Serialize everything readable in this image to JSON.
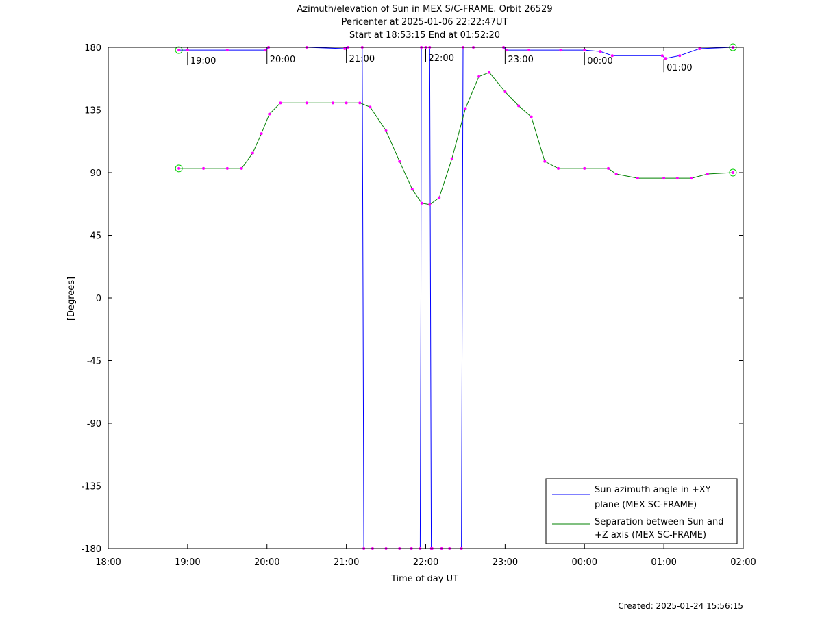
{
  "chart_data": {
    "type": "line",
    "title_lines": [
      "Azimuth/elevation of Sun in MEX S/C-FRAME.  Orbit 26529",
      "Pericenter at 2025-01-06 22:22:47UT",
      "Start at 18:53:15 End at 01:52:20"
    ],
    "xlabel": "Time of day UT",
    "ylabel": "[Degrees]",
    "xlim": [
      "18:00",
      "02:00"
    ],
    "ylim": [
      -180,
      180
    ],
    "x_ticks": [
      "18:00",
      "19:00",
      "20:00",
      "21:00",
      "22:00",
      "23:00",
      "00:00",
      "01:00",
      "02:00"
    ],
    "y_ticks": [
      180,
      135,
      90,
      45,
      0,
      -45,
      -90,
      -135,
      -180
    ],
    "hour_annotations": [
      "19:00",
      "20:00",
      "21:00",
      "22:00",
      "23:00",
      "00:00",
      "01:00"
    ],
    "legend_position": "bottom-right",
    "footer": "Created: 2025-01-24 15:56:15",
    "colors": {
      "azimuth": "#0000ff",
      "separation": "#008000",
      "markers": "#ff00ff",
      "endpoints": "#00cc00"
    },
    "series": [
      {
        "name": "Sun azimuth angle in +XY plane (MEX SC-FRAME)",
        "key": "azimuth",
        "x_hours": [
          18.89,
          19.0,
          19.5,
          19.98,
          20.02,
          20.5,
          20.98,
          21.02,
          21.2,
          21.21,
          21.22,
          21.33,
          21.5,
          21.67,
          21.82,
          21.93,
          21.94,
          21.945,
          22.0,
          22.05,
          22.06,
          22.07,
          22.08,
          22.2,
          22.3,
          22.45,
          22.46,
          22.47,
          22.6,
          22.98,
          23.02,
          23.3,
          23.7,
          24.0,
          24.2,
          24.35,
          24.98,
          25.02,
          25.2,
          25.45,
          25.87
        ],
        "values": [
          178,
          178,
          178,
          178,
          180,
          180,
          179,
          180,
          180,
          0,
          -180,
          -180,
          -180,
          -180,
          -180,
          -180,
          0,
          180,
          180,
          180,
          0,
          -180,
          -180,
          -180,
          -180,
          -180,
          0,
          180,
          180,
          180,
          178,
          178,
          178,
          178,
          177,
          174,
          174,
          172,
          174,
          179,
          180
        ]
      },
      {
        "name": "Separation between Sun and +Z axis (MEX SC-FRAME)",
        "key": "separation",
        "x_hours": [
          18.89,
          19.2,
          19.5,
          19.68,
          19.82,
          19.93,
          20.03,
          20.17,
          20.5,
          20.83,
          21.0,
          21.17,
          21.3,
          21.5,
          21.67,
          21.83,
          21.95,
          22.05,
          22.17,
          22.33,
          22.5,
          22.67,
          22.8,
          23.0,
          23.17,
          23.33,
          23.5,
          23.67,
          24.0,
          24.3,
          24.4,
          24.67,
          25.0,
          25.17,
          25.35,
          25.55,
          25.87
        ],
        "values": [
          93,
          93,
          93,
          93,
          104,
          118,
          132,
          140,
          140,
          140,
          140,
          140,
          137,
          120,
          98,
          78,
          68,
          67,
          72,
          100,
          136,
          159,
          162,
          148,
          138,
          130,
          98,
          93,
          93,
          93,
          89,
          86,
          86,
          86,
          86,
          89,
          90
        ]
      }
    ]
  }
}
